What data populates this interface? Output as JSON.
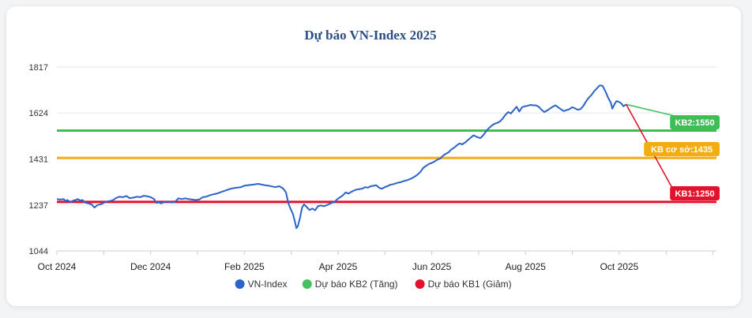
{
  "chart_data": {
    "type": "line",
    "title": "Dự báo VN-Index 2025",
    "xlabel": "",
    "ylabel": "",
    "ylim": [
      1044,
      1817
    ],
    "y_ticks": [
      "1817",
      "1624",
      "1431",
      "1237",
      "1044"
    ],
    "x_ticks": [
      "Oct 2024",
      "Dec 2024",
      "Feb 2025",
      "Apr 2025",
      "Jun 2025",
      "Aug 2025",
      "Oct 2025"
    ],
    "grid": true,
    "legend_position": "bottom",
    "series": [
      {
        "name": "VN-Index",
        "color": "#2b63c9",
        "points": [
          [
            0,
            1262
          ],
          [
            0.5,
            1260
          ],
          [
            1,
            1262
          ],
          [
            1.2,
            1254
          ],
          [
            1.5,
            1258
          ],
          [
            2,
            1248
          ],
          [
            2.3,
            1255
          ],
          [
            2.7,
            1258
          ],
          [
            3,
            1262
          ],
          [
            3.4,
            1256
          ],
          [
            3.7,
            1258
          ],
          [
            4,
            1248
          ],
          [
            4.5,
            1244
          ],
          [
            5,
            1240
          ],
          [
            5.4,
            1226
          ],
          [
            5.8,
            1236
          ],
          [
            6.5,
            1242
          ],
          [
            7,
            1250
          ],
          [
            7.6,
            1254
          ],
          [
            8,
            1256
          ],
          [
            8.5,
            1266
          ],
          [
            9,
            1272
          ],
          [
            9.5,
            1270
          ],
          [
            10,
            1275
          ],
          [
            10.5,
            1266
          ],
          [
            11,
            1268
          ],
          [
            11.5,
            1272
          ],
          [
            12,
            1270
          ],
          [
            12.5,
            1276
          ],
          [
            13,
            1274
          ],
          [
            13.5,
            1270
          ],
          [
            14,
            1262
          ],
          [
            14.3,
            1246
          ],
          [
            14.7,
            1248
          ],
          [
            15,
            1244
          ],
          [
            15.5,
            1250
          ],
          [
            16,
            1252
          ],
          [
            16.5,
            1248
          ],
          [
            17,
            1250
          ],
          [
            17.5,
            1265
          ],
          [
            18,
            1262
          ],
          [
            18.5,
            1265
          ],
          [
            19,
            1262
          ],
          [
            19.5,
            1260
          ],
          [
            20,
            1258
          ],
          [
            20.5,
            1260
          ],
          [
            21,
            1270
          ],
          [
            21.5,
            1272
          ],
          [
            22,
            1278
          ],
          [
            22.5,
            1282
          ],
          [
            23,
            1285
          ],
          [
            23.5,
            1290
          ],
          [
            24,
            1295
          ],
          [
            24.5,
            1300
          ],
          [
            25,
            1305
          ],
          [
            25.5,
            1308
          ],
          [
            26,
            1310
          ],
          [
            26.5,
            1312
          ],
          [
            27,
            1318
          ],
          [
            27.5,
            1320
          ],
          [
            28,
            1322
          ],
          [
            28.5,
            1324
          ],
          [
            29,
            1326
          ],
          [
            29.5,
            1323
          ],
          [
            30,
            1320
          ],
          [
            30.5,
            1318
          ],
          [
            31,
            1315
          ],
          [
            31.5,
            1312
          ],
          [
            32,
            1316
          ],
          [
            32.4,
            1310
          ],
          [
            32.6,
            1306
          ],
          [
            33,
            1290
          ],
          [
            33.3,
            1248
          ],
          [
            33.6,
            1225
          ],
          [
            34,
            1200
          ],
          [
            34.3,
            1165
          ],
          [
            34.5,
            1140
          ],
          [
            34.7,
            1148
          ],
          [
            35,
            1180
          ],
          [
            35.3,
            1225
          ],
          [
            35.6,
            1240
          ],
          [
            36,
            1228
          ],
          [
            36.4,
            1216
          ],
          [
            36.8,
            1222
          ],
          [
            37.2,
            1215
          ],
          [
            37.6,
            1232
          ],
          [
            38,
            1235
          ],
          [
            38.5,
            1232
          ],
          [
            39,
            1238
          ],
          [
            39.5,
            1245
          ],
          [
            40,
            1250
          ],
          [
            40.4,
            1262
          ],
          [
            40.8,
            1270
          ],
          [
            41.2,
            1278
          ],
          [
            41.6,
            1290
          ],
          [
            42,
            1285
          ],
          [
            42.4,
            1292
          ],
          [
            42.8,
            1298
          ],
          [
            43.2,
            1302
          ],
          [
            43.6,
            1304
          ],
          [
            44,
            1306
          ],
          [
            44.4,
            1312
          ],
          [
            44.8,
            1310
          ],
          [
            45.2,
            1316
          ],
          [
            45.6,
            1318
          ],
          [
            46,
            1320
          ],
          [
            46.4,
            1310
          ],
          [
            46.8,
            1305
          ],
          [
            47.2,
            1312
          ],
          [
            47.6,
            1316
          ],
          [
            48,
            1322
          ],
          [
            48.5,
            1325
          ],
          [
            49,
            1330
          ],
          [
            49.5,
            1333
          ],
          [
            50,
            1338
          ],
          [
            50.5,
            1342
          ],
          [
            51,
            1348
          ],
          [
            51.5,
            1356
          ],
          [
            52,
            1366
          ],
          [
            52.4,
            1378
          ],
          [
            52.8,
            1394
          ],
          [
            53.2,
            1402
          ],
          [
            53.6,
            1410
          ],
          [
            54,
            1414
          ],
          [
            54.4,
            1420
          ],
          [
            54.8,
            1428
          ],
          [
            55.2,
            1432
          ],
          [
            55.6,
            1444
          ],
          [
            56,
            1452
          ],
          [
            56.4,
            1458
          ],
          [
            56.8,
            1470
          ],
          [
            57.2,
            1478
          ],
          [
            57.6,
            1488
          ],
          [
            58,
            1496
          ],
          [
            58.4,
            1492
          ],
          [
            58.8,
            1500
          ],
          [
            59.2,
            1510
          ],
          [
            59.6,
            1520
          ],
          [
            60,
            1530
          ],
          [
            60.3,
            1526
          ],
          [
            60.6,
            1522
          ],
          [
            61,
            1518
          ],
          [
            61.4,
            1530
          ],
          [
            61.8,
            1546
          ],
          [
            62.2,
            1560
          ],
          [
            62.6,
            1570
          ],
          [
            63,
            1578
          ],
          [
            63.4,
            1582
          ],
          [
            63.8,
            1588
          ],
          [
            64.2,
            1600
          ],
          [
            64.6,
            1616
          ],
          [
            65,
            1628
          ],
          [
            65.4,
            1622
          ],
          [
            65.8,
            1636
          ],
          [
            66.2,
            1650
          ],
          [
            66.6,
            1630
          ],
          [
            67,
            1648
          ],
          [
            67.4,
            1652
          ],
          [
            67.8,
            1654
          ],
          [
            68.2,
            1658
          ],
          [
            68.6,
            1656
          ],
          [
            69,
            1656
          ],
          [
            69.4,
            1650
          ],
          [
            69.8,
            1638
          ],
          [
            70.2,
            1628
          ],
          [
            70.6,
            1634
          ],
          [
            71,
            1642
          ],
          [
            71.4,
            1650
          ],
          [
            71.8,
            1656
          ],
          [
            72.2,
            1648
          ],
          [
            72.6,
            1640
          ],
          [
            73,
            1632
          ],
          [
            73.4,
            1636
          ],
          [
            73.8,
            1640
          ],
          [
            74.2,
            1648
          ],
          [
            74.6,
            1644
          ],
          [
            75,
            1638
          ],
          [
            75.4,
            1640
          ],
          [
            75.8,
            1652
          ],
          [
            76.2,
            1672
          ],
          [
            76.6,
            1688
          ],
          [
            77,
            1700
          ],
          [
            77.4,
            1716
          ],
          [
            77.8,
            1728
          ],
          [
            78.2,
            1740
          ],
          [
            78.6,
            1738
          ],
          [
            79,
            1715
          ],
          [
            79.4,
            1688
          ],
          [
            79.8,
            1666
          ],
          [
            80,
            1642
          ],
          [
            80.3,
            1660
          ],
          [
            80.6,
            1674
          ],
          [
            81,
            1670
          ],
          [
            81.3,
            1664
          ],
          [
            81.6,
            1652
          ],
          [
            82,
            1660
          ]
        ]
      },
      {
        "name": "Dự báo KB2 (Tăng)",
        "color": "#45c063",
        "points": [
          [
            82,
            1660
          ],
          [
            89.5,
            1608
          ]
        ]
      },
      {
        "name": "Dự báo KB1 (Giảm)",
        "color": "#e3122c",
        "points": [
          [
            82,
            1660
          ],
          [
            89.5,
            1262
          ]
        ]
      }
    ],
    "x_range": [
      0,
      95
    ],
    "x_tick_positions": [
      0,
      13.5,
      27,
      40.5,
      54,
      67.5,
      81
    ],
    "reference_lines": [
      {
        "name": "KB2",
        "value": 1550,
        "color": "#3fbe58",
        "badge": "KB2:1550"
      },
      {
        "name": "KB cơ sở",
        "value": 1435,
        "color": "#f3ad10",
        "badge": "KB cơ sở:1435"
      },
      {
        "name": "KB1",
        "value": 1250,
        "color": "#e3122c",
        "badge": "KB1:1250"
      }
    ]
  }
}
